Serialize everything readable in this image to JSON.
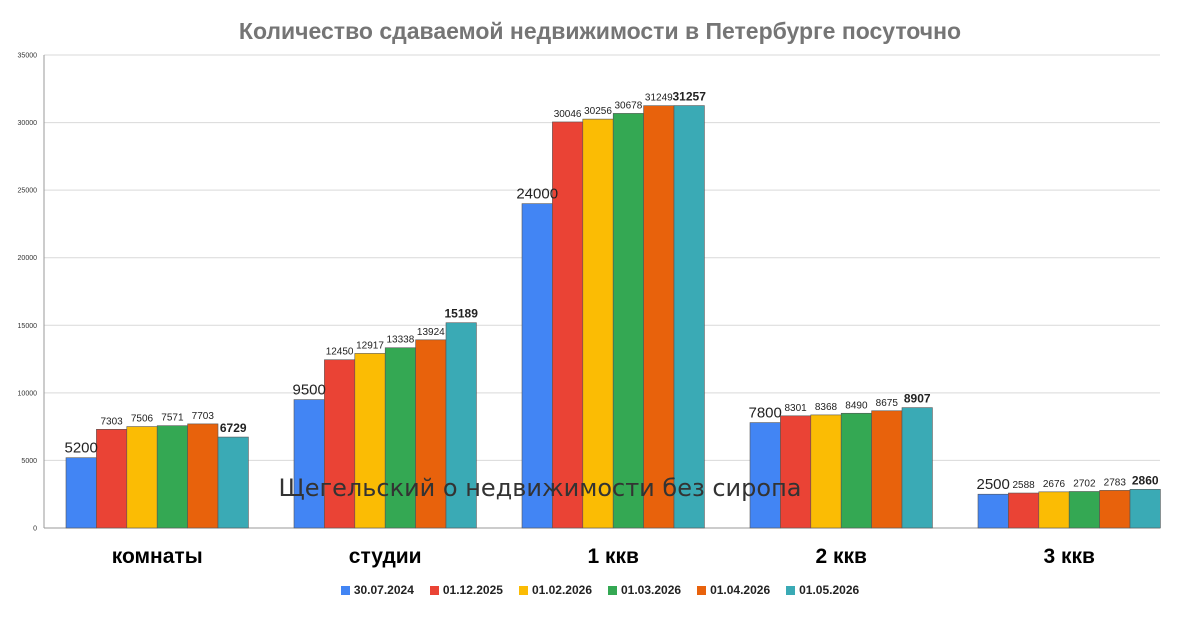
{
  "chart_data": {
    "type": "bar",
    "title": "Количество сдаваемой недвижимости в Петербурге посуточно",
    "xlabel": "",
    "ylabel": "",
    "ylim": [
      0,
      35000
    ],
    "yticks": [
      0,
      5000,
      10000,
      15000,
      20000,
      25000,
      30000,
      35000
    ],
    "grid": true,
    "legend_position": "bottom",
    "categories": [
      "комнаты",
      "студии",
      "1 ккв",
      "2 ккв",
      "3 ккв"
    ],
    "series": [
      {
        "name": "30.07.2024",
        "color": "#4285F4",
        "values": [
          5200,
          9500,
          24000,
          7800,
          2500
        ]
      },
      {
        "name": "01.12.2025",
        "color": "#EA4335",
        "values": [
          7303,
          12450,
          30046,
          8301,
          2588
        ]
      },
      {
        "name": "01.02.2026",
        "color": "#FBBC04",
        "values": [
          7506,
          12917,
          30256,
          8368,
          2676
        ]
      },
      {
        "name": "01.03.2026",
        "color": "#34A853",
        "values": [
          7571,
          13338,
          30678,
          8490,
          2702
        ]
      },
      {
        "name": "01.04.2026",
        "color": "#E8620C",
        "values": [
          7703,
          13924,
          31249,
          8675,
          2783
        ]
      },
      {
        "name": "01.05.2026",
        "color": "#3AAAB5",
        "values": [
          6729,
          15189,
          31257,
          8907,
          2860
        ]
      }
    ],
    "annotation": "Щегельский о недвижимости без сиропа"
  }
}
